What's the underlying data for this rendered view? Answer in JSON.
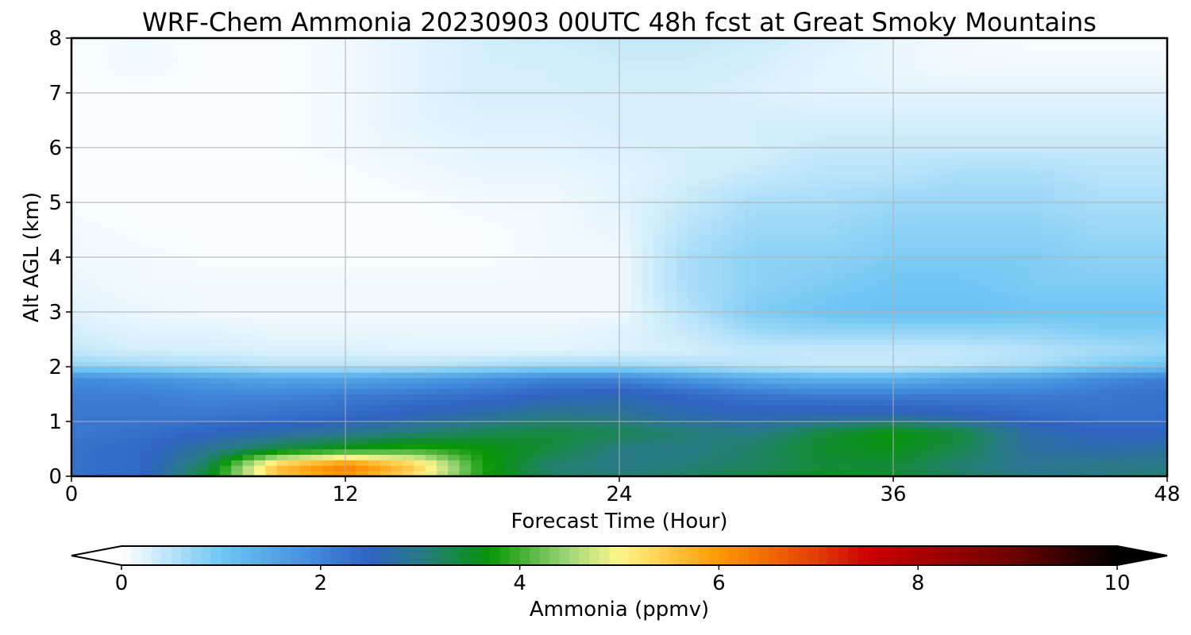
{
  "chart_data": {
    "type": "heatmap",
    "title": "WRF-Chem Ammonia  20230903 00UTC 48h fcst at Great Smoky Mountains",
    "xlabel": "Forecast Time (Hour)",
    "ylabel": "Alt AGL (km)",
    "xlim": [
      0,
      48
    ],
    "ylim": [
      0,
      8
    ],
    "x_ticks": [
      0,
      12,
      24,
      36,
      48
    ],
    "y_ticks": [
      0,
      1,
      2,
      3,
      4,
      5,
      6,
      7,
      8
    ],
    "grid": true,
    "colorbar": {
      "label": "Ammonia  (ppmv)",
      "range": [
        0,
        10
      ],
      "ticks": [
        0,
        2,
        4,
        6,
        8,
        10
      ],
      "extend": "both",
      "stops": [
        {
          "v": 0,
          "c": "#ffffff"
        },
        {
          "v": 1,
          "c": "#6fc6f3"
        },
        {
          "v": 2,
          "c": "#3f86d9"
        },
        {
          "v": 2.5,
          "c": "#2f62c2"
        },
        {
          "v": 3,
          "c": "#287a86"
        },
        {
          "v": 3.7,
          "c": "#069606"
        },
        {
          "v": 4.5,
          "c": "#a2d77a"
        },
        {
          "v": 5,
          "c": "#fff68a"
        },
        {
          "v": 6,
          "c": "#ff9800"
        },
        {
          "v": 7,
          "c": "#e03b04"
        },
        {
          "v": 7.5,
          "c": "#cc0000"
        },
        {
          "v": 9,
          "c": "#6a0000"
        },
        {
          "v": 10,
          "c": "#000000"
        }
      ]
    },
    "time_hours": [
      0,
      3,
      6,
      9,
      12,
      15,
      18,
      21,
      24,
      27,
      30,
      33,
      36,
      39,
      42,
      45,
      48
    ],
    "altitude_km": [
      0.0,
      0.2,
      0.5,
      0.8,
      1.1,
      1.5,
      1.8,
      2.0,
      2.3,
      2.7,
      3.0,
      3.5,
      4.0,
      4.5,
      5.0,
      5.5,
      6.0,
      6.5,
      7.0,
      7.5,
      8.0
    ],
    "ammonia_ppmv": [
      [
        2.3,
        2.4,
        3.5,
        5.5,
        6.0,
        5.2,
        3.8,
        3.2,
        3.1,
        3.2,
        3.4,
        3.6,
        3.5,
        3.2,
        3.0,
        3.0,
        3.1
      ],
      [
        2.3,
        2.4,
        3.3,
        5.6,
        6.3,
        5.5,
        3.8,
        3.1,
        3.0,
        3.1,
        3.2,
        3.4,
        3.4,
        3.1,
        2.9,
        3.0,
        3.0
      ],
      [
        2.3,
        2.4,
        2.9,
        3.4,
        3.7,
        3.9,
        3.7,
        3.4,
        3.0,
        3.0,
        3.2,
        3.5,
        3.6,
        3.3,
        2.8,
        2.7,
        2.8
      ],
      [
        2.2,
        2.3,
        2.5,
        2.7,
        2.9,
        3.1,
        3.3,
        3.4,
        3.3,
        3.1,
        3.0,
        3.4,
        3.7,
        3.4,
        2.7,
        2.5,
        2.5
      ],
      [
        2.2,
        2.2,
        2.2,
        2.3,
        2.4,
        2.6,
        2.8,
        3.0,
        2.9,
        2.7,
        2.6,
        2.7,
        2.7,
        2.6,
        2.4,
        2.3,
        2.3
      ],
      [
        2.1,
        2.1,
        2.0,
        2.0,
        2.1,
        2.2,
        2.3,
        2.5,
        2.6,
        2.4,
        2.2,
        2.1,
        2.1,
        2.1,
        2.1,
        2.2,
        2.3
      ],
      [
        1.9,
        1.8,
        1.6,
        1.5,
        1.5,
        1.6,
        1.8,
        2.0,
        2.0,
        1.7,
        1.4,
        1.3,
        1.3,
        1.5,
        1.6,
        1.9,
        2.1
      ],
      [
        0.8,
        0.7,
        0.6,
        0.5,
        0.5,
        0.5,
        0.6,
        0.7,
        0.7,
        0.6,
        0.5,
        0.4,
        0.4,
        0.5,
        0.6,
        0.9,
        1.1
      ],
      [
        0.4,
        0.3,
        0.3,
        0.25,
        0.25,
        0.2,
        0.2,
        0.2,
        0.25,
        0.3,
        0.4,
        0.4,
        0.4,
        0.4,
        0.5,
        0.6,
        0.7
      ],
      [
        0.3,
        0.2,
        0.2,
        0.15,
        0.15,
        0.15,
        0.15,
        0.15,
        0.2,
        0.4,
        0.7,
        0.8,
        0.8,
        0.8,
        0.8,
        0.9,
        0.9
      ],
      [
        0.2,
        0.15,
        0.1,
        0.1,
        0.1,
        0.1,
        0.1,
        0.1,
        0.1,
        0.5,
        0.9,
        1.0,
        1.1,
        1.1,
        1.0,
        1.0,
        1.0
      ],
      [
        0.15,
        0.1,
        0.1,
        0.1,
        0.1,
        0.1,
        0.1,
        0.1,
        0.1,
        0.6,
        0.8,
        0.9,
        1.0,
        1.0,
        0.9,
        0.9,
        0.9
      ],
      [
        0.1,
        0.1,
        0.05,
        0.05,
        0.05,
        0.05,
        0.05,
        0.1,
        0.1,
        0.6,
        0.8,
        0.8,
        0.9,
        0.9,
        0.9,
        0.8,
        0.8
      ],
      [
        0.1,
        0.05,
        0.05,
        0.05,
        0.05,
        0.05,
        0.05,
        0.1,
        0.15,
        0.5,
        0.7,
        0.7,
        0.8,
        0.8,
        0.8,
        0.7,
        0.7
      ],
      [
        0.05,
        0.05,
        0.05,
        0.05,
        0.05,
        0.05,
        0.1,
        0.1,
        0.2,
        0.4,
        0.6,
        0.6,
        0.7,
        0.7,
        0.7,
        0.6,
        0.6
      ],
      [
        0.05,
        0.05,
        0.05,
        0.05,
        0.05,
        0.1,
        0.15,
        0.15,
        0.2,
        0.3,
        0.4,
        0.5,
        0.5,
        0.6,
        0.6,
        0.5,
        0.5
      ],
      [
        0.05,
        0.05,
        0.05,
        0.05,
        0.1,
        0.15,
        0.2,
        0.2,
        0.25,
        0.3,
        0.3,
        0.4,
        0.4,
        0.4,
        0.4,
        0.4,
        0.4
      ],
      [
        0.05,
        0.05,
        0.05,
        0.05,
        0.1,
        0.2,
        0.25,
        0.25,
        0.3,
        0.3,
        0.3,
        0.3,
        0.3,
        0.3,
        0.3,
        0.3,
        0.3
      ],
      [
        0.05,
        0.05,
        0.05,
        0.05,
        0.1,
        0.2,
        0.3,
        0.3,
        0.3,
        0.3,
        0.25,
        0.2,
        0.2,
        0.2,
        0.2,
        0.2,
        0.2
      ],
      [
        0.05,
        0.1,
        0.05,
        0.05,
        0.1,
        0.2,
        0.3,
        0.3,
        0.35,
        0.35,
        0.3,
        0.2,
        0.15,
        0.1,
        0.1,
        0.1,
        0.1
      ],
      [
        0.05,
        0.1,
        0.05,
        0.05,
        0.1,
        0.2,
        0.3,
        0.35,
        0.4,
        0.4,
        0.35,
        0.25,
        0.15,
        0.1,
        0.05,
        0.05,
        0.05
      ]
    ]
  }
}
